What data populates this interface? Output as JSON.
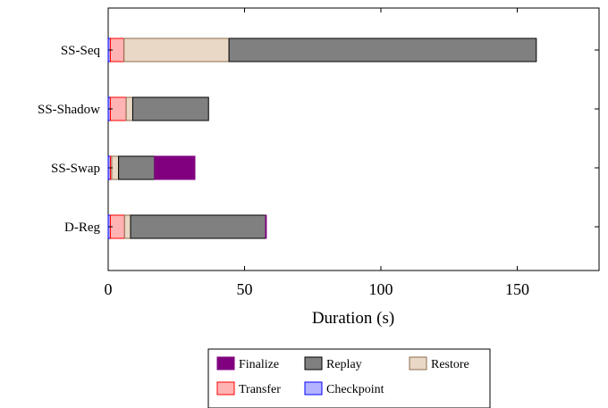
{
  "chart_data": {
    "type": "bar",
    "orientation": "horizontal",
    "stacked": true,
    "title": "",
    "xlabel": "Duration (s)",
    "ylabel": "",
    "xlim": [
      0,
      180
    ],
    "xticks": [
      0,
      50,
      100,
      150
    ],
    "grid": false,
    "legend_position": "bottom",
    "categories": [
      "SS-Seq",
      "SS-Shadow",
      "SS-Swap",
      "D-Reg"
    ],
    "series": [
      {
        "name": "Checkpoint",
        "color": "#b3b3ff",
        "stroke": "#0000ff",
        "values": [
          0.8,
          0.8,
          0.8,
          0.8
        ]
      },
      {
        "name": "Transfer",
        "color": "#ffb3b3",
        "stroke": "#ff0000",
        "values": [
          5.0,
          5.8,
          0.5,
          5.2
        ]
      },
      {
        "name": "Restore",
        "color": "#ead8c6",
        "stroke": "#8c6d4f",
        "values": [
          38.5,
          2.4,
          2.5,
          2.2
        ]
      },
      {
        "name": "Replay",
        "color": "#808080",
        "stroke": "#000000",
        "values": [
          112.7,
          27.8,
          13.2,
          49.5
        ]
      },
      {
        "name": "Finalize",
        "color": "#800080",
        "stroke": "#800080",
        "values": [
          0,
          0,
          14.8,
          0.3
        ]
      }
    ],
    "legend_order": [
      "Finalize",
      "Replay",
      "Restore",
      "Transfer",
      "Checkpoint"
    ]
  }
}
